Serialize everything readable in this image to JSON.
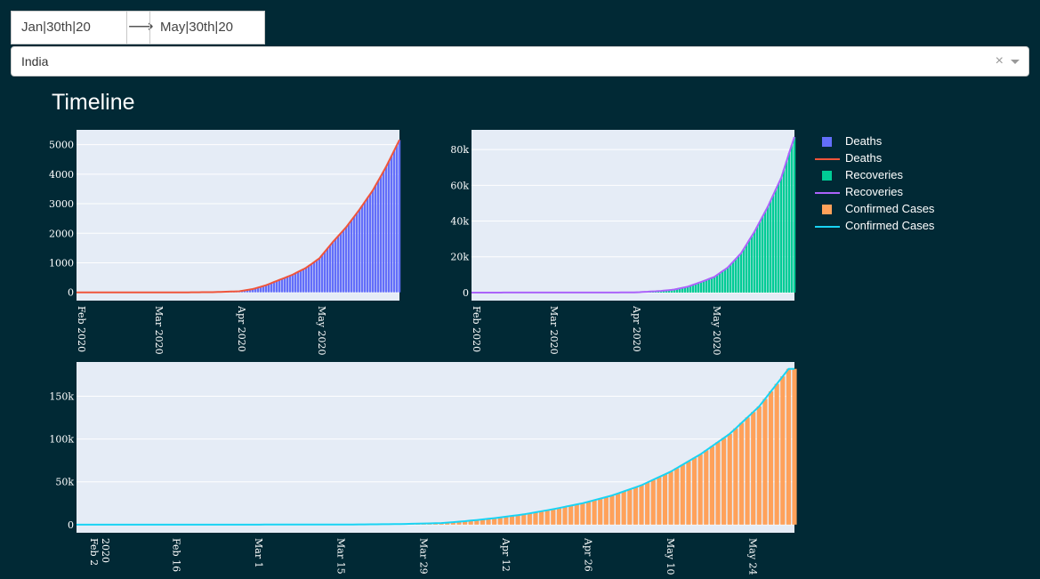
{
  "date_range": {
    "start": "Jan|30th|20",
    "arrow": "⟶",
    "end": "May|30th|20"
  },
  "country_select": {
    "value": "India",
    "clear": "×"
  },
  "page_title": "Timeline",
  "colors": {
    "background": "#012935",
    "plot_bg": "#e5ecf6",
    "deaths_bar": "#636efa",
    "deaths_line": "#ef553b",
    "recoveries_bar": "#00cc96",
    "recoveries_line": "#ab63fa",
    "confirmed_bar": "#ffa15a",
    "confirmed_line": "#19d3f3"
  },
  "legend": [
    {
      "label": "Deaths",
      "kind": "bar",
      "color": "#636efa"
    },
    {
      "label": "Deaths",
      "kind": "line",
      "color": "#ef553b"
    },
    {
      "label": "Recoveries",
      "kind": "bar",
      "color": "#00cc96"
    },
    {
      "label": "Recoveries",
      "kind": "line",
      "color": "#ab63fa"
    },
    {
      "label": "Confirmed Cases",
      "kind": "bar",
      "color": "#ffa15a"
    },
    {
      "label": "Confirmed Cases",
      "kind": "line",
      "color": "#19d3f3"
    }
  ],
  "chart_data": [
    {
      "type": "bar",
      "x_type": "date",
      "x_range": [
        "2020-01-30",
        "2020-05-30"
      ],
      "xticks": [
        {
          "date": "2020-02-01",
          "label": "Feb 2020"
        },
        {
          "date": "2020-03-01",
          "label": "Mar 2020"
        },
        {
          "date": "2020-04-01",
          "label": "Apr 2020"
        },
        {
          "date": "2020-05-01",
          "label": "May 2020"
        }
      ],
      "ylim": [
        -280,
        5500
      ],
      "yticks": [
        0,
        1000,
        2000,
        3000,
        4000,
        5000
      ],
      "ytick_labels": [
        "0",
        "1000",
        "2000",
        "3000",
        "4000",
        "5000"
      ],
      "grid": true,
      "anchors": [
        [
          "2020-01-30",
          0
        ],
        [
          "2020-03-10",
          0
        ],
        [
          "2020-03-22",
          8
        ],
        [
          "2020-03-31",
          35
        ],
        [
          "2020-04-05",
          110
        ],
        [
          "2020-04-10",
          240
        ],
        [
          "2020-04-15",
          420
        ],
        [
          "2020-04-20",
          600
        ],
        [
          "2020-04-25",
          830
        ],
        [
          "2020-04-30",
          1150
        ],
        [
          "2020-05-05",
          1700
        ],
        [
          "2020-05-10",
          2200
        ],
        [
          "2020-05-15",
          2800
        ],
        [
          "2020-05-20",
          3450
        ],
        [
          "2020-05-25",
          4250
        ],
        [
          "2020-05-30",
          5160
        ]
      ],
      "series": [
        {
          "name": "Deaths",
          "kind": "bar",
          "color": "#636efa"
        },
        {
          "name": "Deaths",
          "kind": "line",
          "color": "#ef553b"
        }
      ]
    },
    {
      "type": "bar",
      "x_type": "date",
      "x_range": [
        "2020-01-30",
        "2020-05-30"
      ],
      "xticks": [
        {
          "date": "2020-02-01",
          "label": "Feb 2020"
        },
        {
          "date": "2020-03-01",
          "label": "Mar 2020"
        },
        {
          "date": "2020-04-01",
          "label": "Apr 2020"
        },
        {
          "date": "2020-05-01",
          "label": "May 2020"
        }
      ],
      "ylim": [
        -4500,
        91000
      ],
      "yticks": [
        0,
        20000,
        40000,
        60000,
        80000
      ],
      "ytick_labels": [
        "0",
        "20k",
        "40k",
        "60k",
        "80k"
      ],
      "grid": true,
      "anchors": [
        [
          "2020-01-30",
          0
        ],
        [
          "2020-03-10",
          5
        ],
        [
          "2020-03-25",
          50
        ],
        [
          "2020-04-01",
          160
        ],
        [
          "2020-04-10",
          900
        ],
        [
          "2020-04-15",
          1700
        ],
        [
          "2020-04-20",
          3300
        ],
        [
          "2020-04-25",
          5900
        ],
        [
          "2020-04-30",
          8800
        ],
        [
          "2020-05-05",
          14000
        ],
        [
          "2020-05-10",
          22000
        ],
        [
          "2020-05-15",
          34000
        ],
        [
          "2020-05-20",
          48000
        ],
        [
          "2020-05-25",
          64000
        ],
        [
          "2020-05-28",
          78000
        ],
        [
          "2020-05-30",
          87000
        ]
      ],
      "series": [
        {
          "name": "Recoveries",
          "kind": "bar",
          "color": "#00cc96"
        },
        {
          "name": "Recoveries",
          "kind": "line",
          "color": "#ab63fa"
        }
      ]
    },
    {
      "type": "bar",
      "x_type": "date",
      "x_range": [
        "2020-01-30",
        "2020-05-31"
      ],
      "xticks": [
        {
          "date": "2020-02-02",
          "label": "Feb 2\n2020"
        },
        {
          "date": "2020-02-16",
          "label": "Feb 16"
        },
        {
          "date": "2020-03-01",
          "label": "Mar 1"
        },
        {
          "date": "2020-03-15",
          "label": "Mar 15"
        },
        {
          "date": "2020-03-29",
          "label": "Mar 29"
        },
        {
          "date": "2020-04-12",
          "label": "Apr 12"
        },
        {
          "date": "2020-04-26",
          "label": "Apr 26"
        },
        {
          "date": "2020-05-10",
          "label": "May 10"
        },
        {
          "date": "2020-05-24",
          "label": "May 24"
        }
      ],
      "ylim": [
        -9500,
        190000
      ],
      "yticks": [
        0,
        50000,
        100000,
        150000
      ],
      "ytick_labels": [
        "0",
        "50k",
        "100k",
        "150k"
      ],
      "grid": true,
      "anchors": [
        [
          "2020-01-30",
          1
        ],
        [
          "2020-03-01",
          3
        ],
        [
          "2020-03-15",
          110
        ],
        [
          "2020-03-25",
          600
        ],
        [
          "2020-04-01",
          1800
        ],
        [
          "2020-04-05",
          4000
        ],
        [
          "2020-04-10",
          7500
        ],
        [
          "2020-04-15",
          12000
        ],
        [
          "2020-04-20",
          18000
        ],
        [
          "2020-04-25",
          25000
        ],
        [
          "2020-04-30",
          34000
        ],
        [
          "2020-05-05",
          46000
        ],
        [
          "2020-05-10",
          62000
        ],
        [
          "2020-05-15",
          82000
        ],
        [
          "2020-05-20",
          106000
        ],
        [
          "2020-05-25",
          138000
        ],
        [
          "2020-05-30",
          182000
        ]
      ],
      "series": [
        {
          "name": "Confirmed Cases",
          "kind": "bar",
          "color": "#ffa15a"
        },
        {
          "name": "Confirmed Cases",
          "kind": "line",
          "color": "#19d3f3"
        }
      ]
    }
  ]
}
